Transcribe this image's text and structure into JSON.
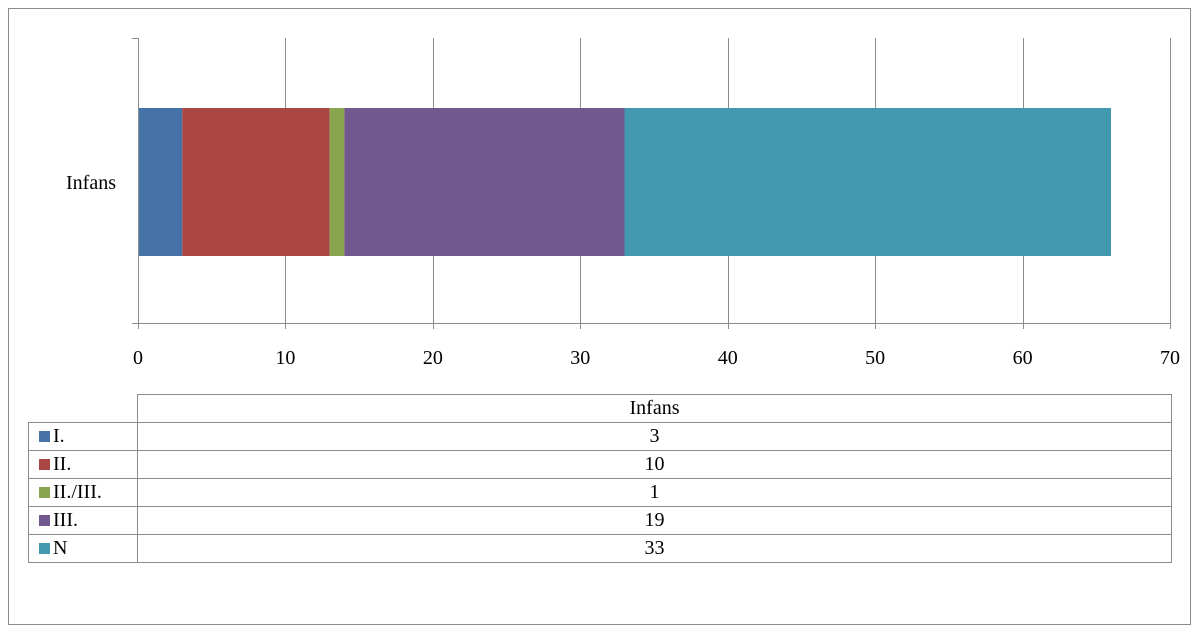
{
  "chart_data": {
    "type": "bar",
    "orientation": "horizontal",
    "stacked": true,
    "categories": [
      "Infans"
    ],
    "series": [
      {
        "name": "I.",
        "values": [
          3
        ],
        "color": "#4572a7"
      },
      {
        "name": "II.",
        "values": [
          10
        ],
        "color": "#aa4643"
      },
      {
        "name": "II./III.",
        "values": [
          1
        ],
        "color": "#89a54e"
      },
      {
        "name": "III.",
        "values": [
          19
        ],
        "color": "#71588f"
      },
      {
        "name": "N",
        "values": [
          33
        ],
        "color": "#4198af"
      }
    ],
    "xlim": [
      0,
      70
    ],
    "xticks": [
      0,
      10,
      20,
      30,
      40,
      50,
      60,
      70
    ],
    "grid": true,
    "legend": "data table below chart",
    "data_table": {
      "column_header": "Infans"
    }
  }
}
